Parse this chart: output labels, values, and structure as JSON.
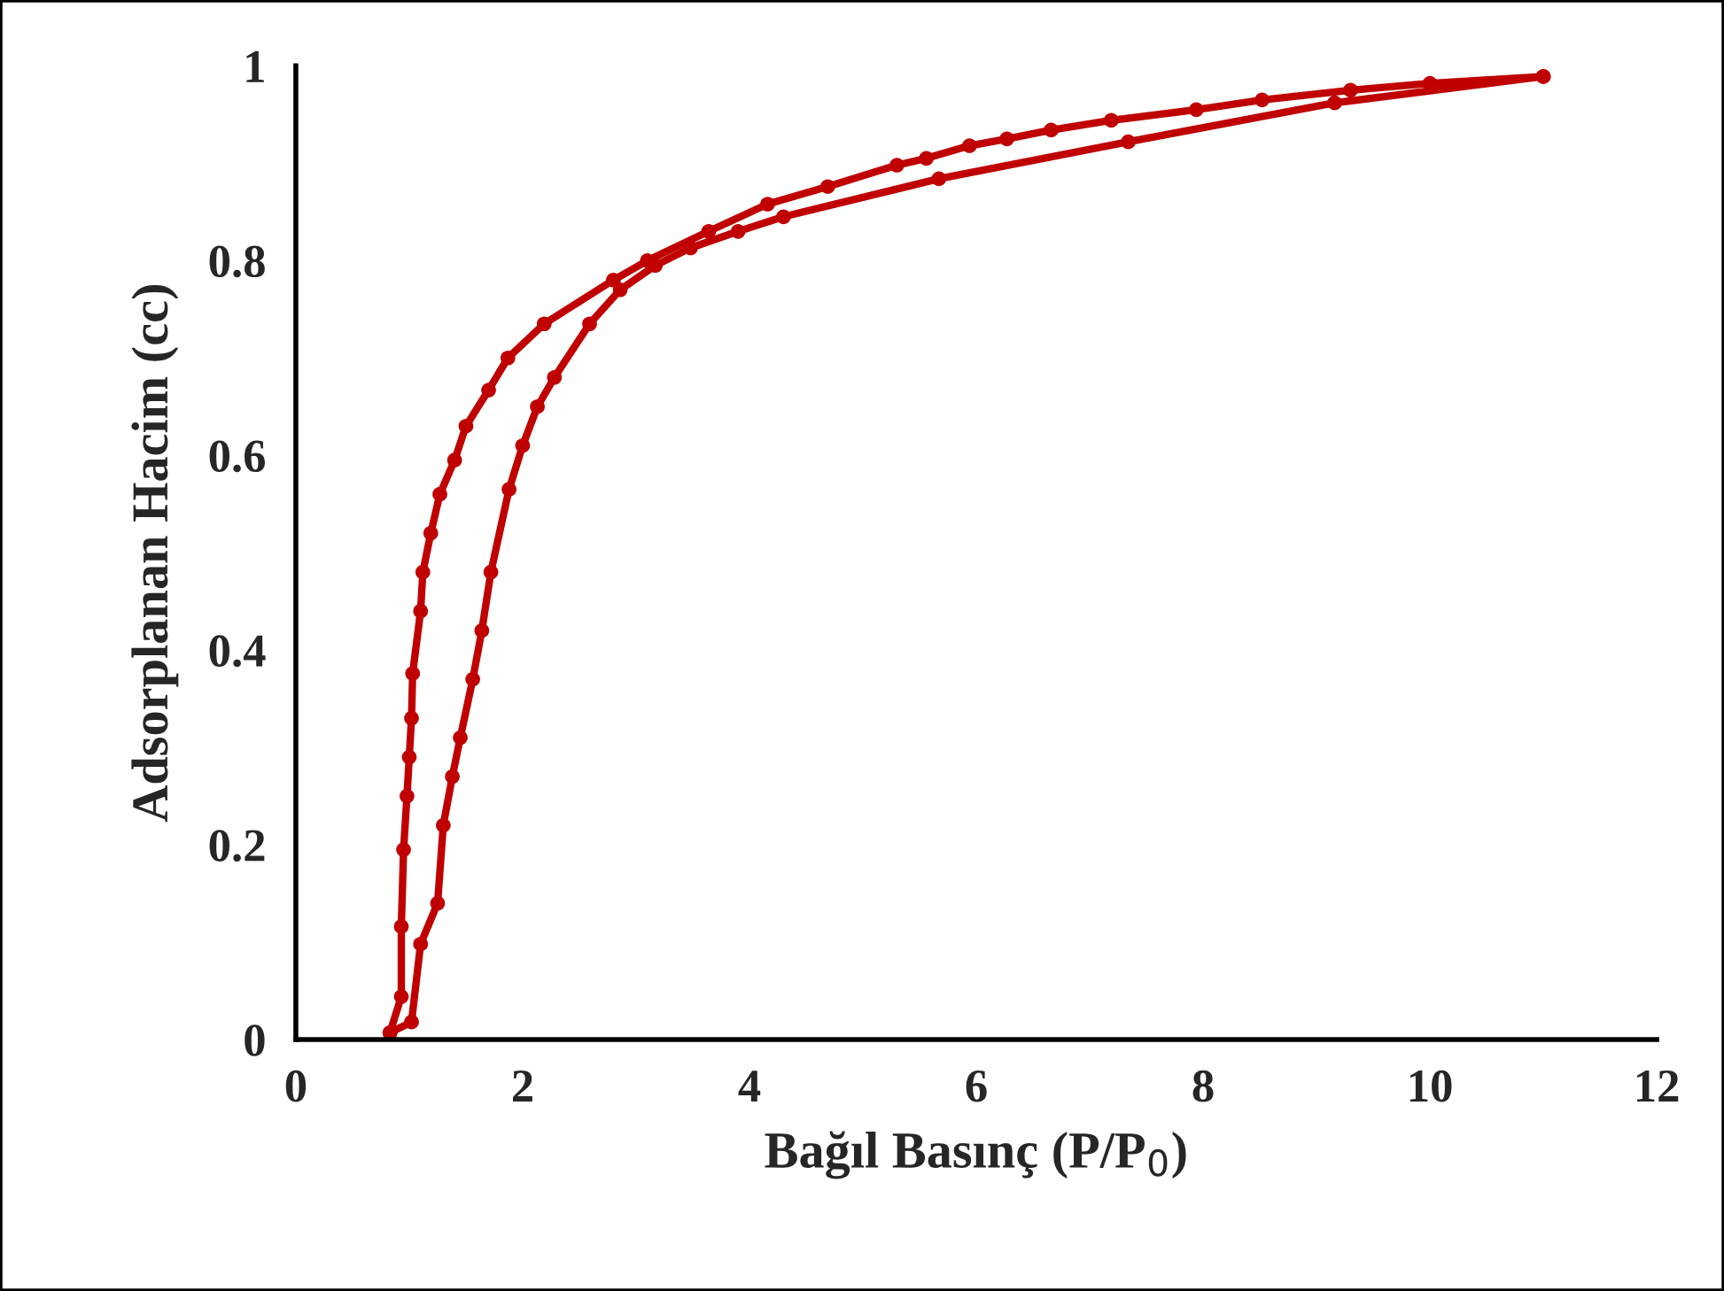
{
  "chart_data": {
    "type": "line",
    "xlabel": "Bağıl Basınç (P/P$_{0}$)",
    "ylabel": "Adsorplanan Hacim (cc)",
    "xlim": [
      0,
      12
    ],
    "xticks": [
      0,
      2,
      4,
      6,
      8,
      10,
      12
    ],
    "ylim": [
      0,
      1
    ],
    "yticks": [
      0,
      0.2,
      0.4,
      0.6,
      0.8,
      1
    ],
    "marker": "circle",
    "line_style": "solid",
    "series": [
      {
        "color": "#c00000",
        "x": [
          0.83,
          0.93,
          0.93,
          0.95,
          0.98,
          1.0,
          1.02,
          1.03,
          1.1,
          1.12,
          1.19,
          1.27,
          1.4,
          1.5,
          1.7,
          1.87,
          2.19,
          2.8,
          3.1,
          3.64,
          4.16,
          4.69,
          5.3,
          5.56,
          5.94,
          6.27,
          6.66,
          7.19,
          7.94,
          8.52,
          9.3,
          10.0,
          11.0
        ],
        "values": [
          0.007,
          0.044,
          0.116,
          0.195,
          0.25,
          0.29,
          0.33,
          0.376,
          0.44,
          0.48,
          0.52,
          0.56,
          0.595,
          0.63,
          0.667,
          0.7,
          0.735,
          0.78,
          0.8,
          0.83,
          0.858,
          0.876,
          0.898,
          0.905,
          0.918,
          0.925,
          0.934,
          0.944,
          0.955,
          0.965,
          0.975,
          0.982,
          0.989
        ]
      },
      {
        "color": "#c00000",
        "x": [
          0.83,
          1.02,
          1.1,
          1.25,
          1.3,
          1.38,
          1.45,
          1.56,
          1.64,
          1.72,
          1.88,
          2.0,
          2.13,
          2.28,
          2.59,
          2.86,
          3.17,
          3.48,
          3.9,
          4.3,
          5.67,
          7.34,
          9.16,
          11.0
        ],
        "values": [
          0.007,
          0.018,
          0.098,
          0.14,
          0.22,
          0.27,
          0.31,
          0.37,
          0.42,
          0.48,
          0.565,
          0.61,
          0.65,
          0.68,
          0.735,
          0.77,
          0.795,
          0.813,
          0.83,
          0.845,
          0.884,
          0.922,
          0.962,
          0.989
        ]
      }
    ]
  }
}
